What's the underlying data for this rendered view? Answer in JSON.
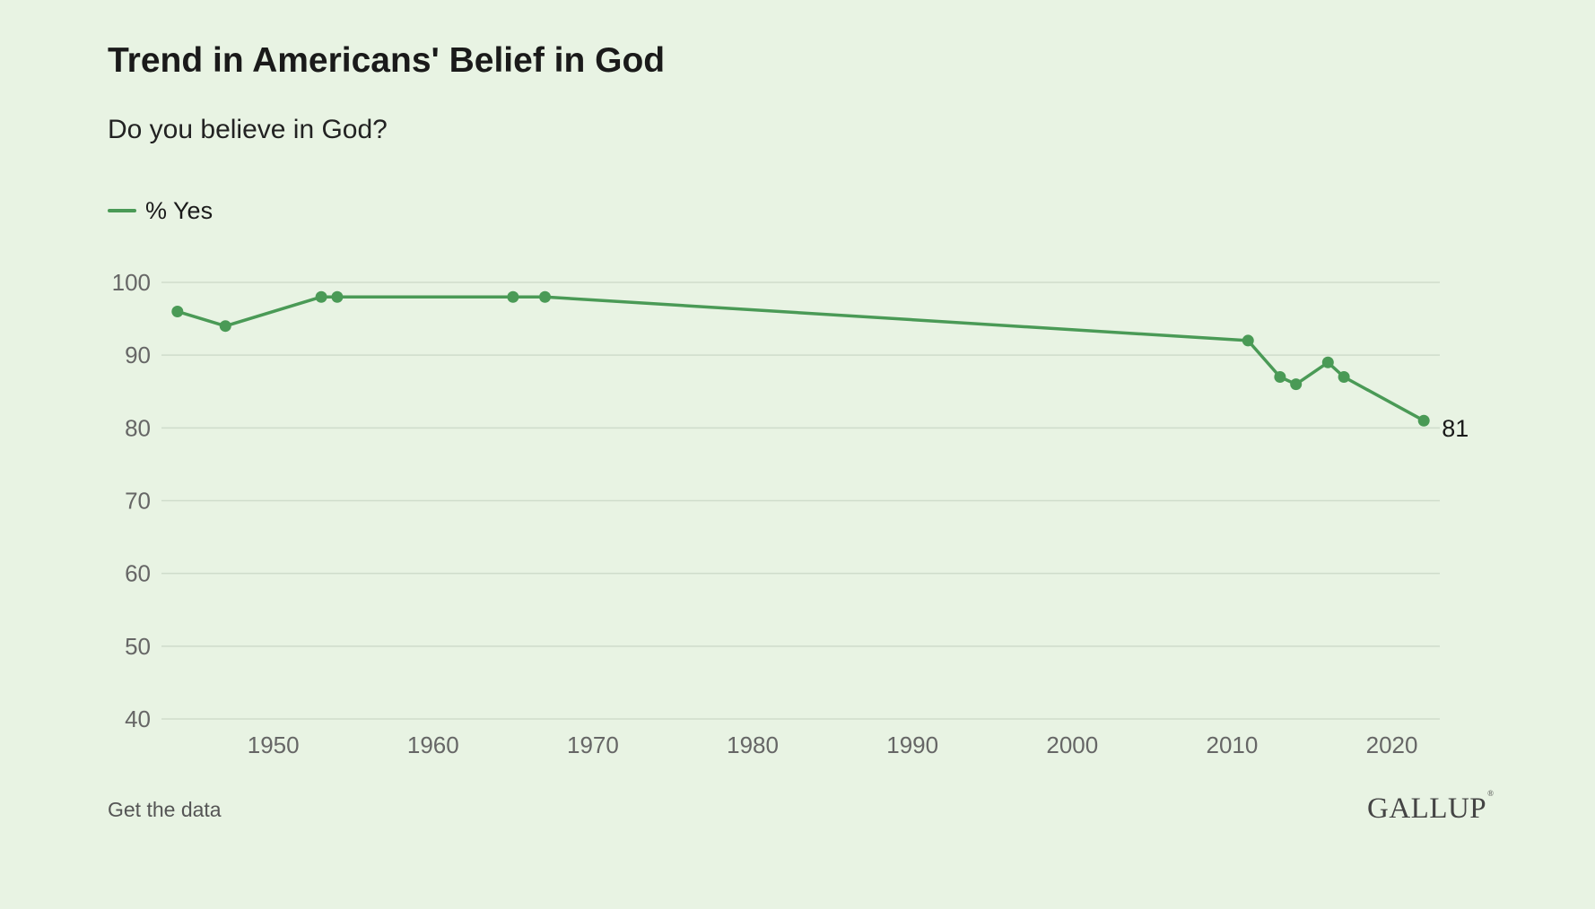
{
  "header": {
    "title": "Trend in Americans' Belief in God",
    "subtitle": "Do you believe in God?"
  },
  "footer": {
    "link_label": "Get the data",
    "brand": "GALLUP",
    "brand_mark": "®"
  },
  "colors": {
    "series": "#4a9a56",
    "background": "#e8f3e3",
    "grid": "#cfdccb",
    "tick_text": "#666666"
  },
  "chart_data": {
    "type": "line",
    "title": "Trend in Americans' Belief in God",
    "subtitle": "Do you believe in God?",
    "xlabel": "",
    "ylabel": "",
    "xlim": [
      1943,
      2023
    ],
    "ylim": [
      40,
      100
    ],
    "x_ticks": [
      1950,
      1960,
      1970,
      1980,
      1990,
      2000,
      2010,
      2020
    ],
    "y_ticks": [
      40,
      50,
      60,
      70,
      80,
      90,
      100
    ],
    "grid": true,
    "legend_position": "top-left",
    "series": [
      {
        "name": "% Yes",
        "x": [
          1944,
          1947,
          1953,
          1954,
          1965,
          1967,
          2011,
          2013,
          2014,
          2016,
          2017,
          2022
        ],
        "y": [
          96,
          94,
          98,
          98,
          98,
          98,
          92,
          87,
          86,
          89,
          87,
          81
        ]
      }
    ],
    "end_label": "81"
  }
}
